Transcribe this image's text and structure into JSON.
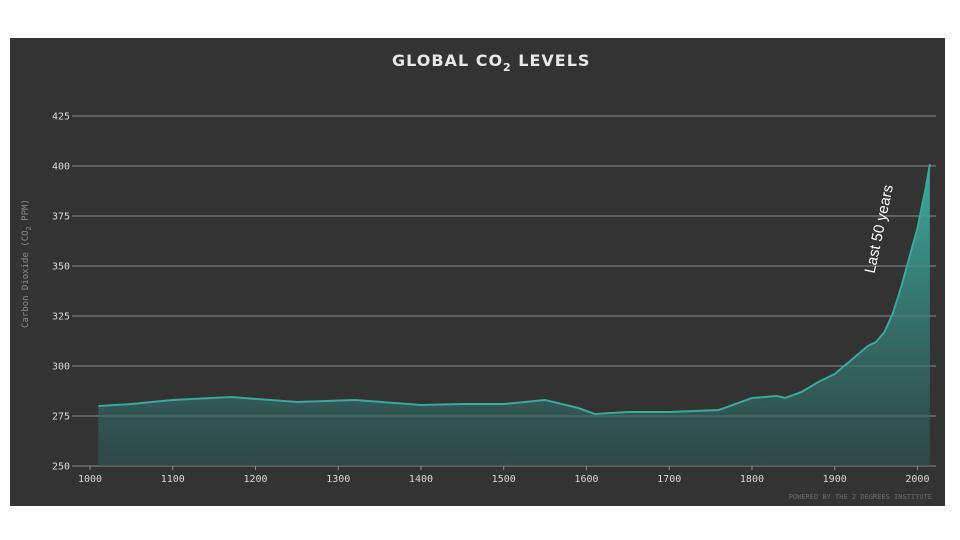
{
  "chart_data": {
    "type": "area",
    "title": "GLOBAL CO",
    "title_subscript": "2",
    "title_suffix": " LEVELS",
    "ylabel": "Carbon Dioxide (CO",
    "ylabel_subscript": "2",
    "ylabel_suffix": " PPM)",
    "xlabel": "",
    "xlim": [
      1000,
      2020
    ],
    "ylim": [
      250,
      425
    ],
    "xticks": [
      1000,
      1100,
      1200,
      1300,
      1400,
      1500,
      1600,
      1700,
      1800,
      1900,
      2000
    ],
    "yticks": [
      250,
      275,
      300,
      325,
      350,
      375,
      400,
      425
    ],
    "grid": true,
    "series": [
      {
        "color": "#3aa89b",
        "x": [
          1010,
          1050,
          1100,
          1170,
          1250,
          1320,
          1400,
          1450,
          1500,
          1550,
          1590,
          1610,
          1650,
          1700,
          1760,
          1800,
          1830,
          1840,
          1860,
          1880,
          1900,
          1920,
          1940,
          1950,
          1960,
          1970,
          1980,
          1990,
          2000,
          2010,
          2015
        ],
        "y": [
          280,
          281,
          283,
          284.5,
          282,
          283,
          280.5,
          281,
          281,
          283,
          279,
          276,
          277,
          277,
          278,
          284,
          285,
          284,
          287,
          292,
          296,
          303,
          310,
          312,
          317,
          326,
          339,
          354,
          369,
          389,
          401
        ]
      }
    ],
    "annotations": [
      {
        "text": "Last 50 years",
        "x": 1960,
        "y": 345
      }
    ],
    "credit": "POWERED BY THE 2 DEGREES INSTITUTE"
  }
}
